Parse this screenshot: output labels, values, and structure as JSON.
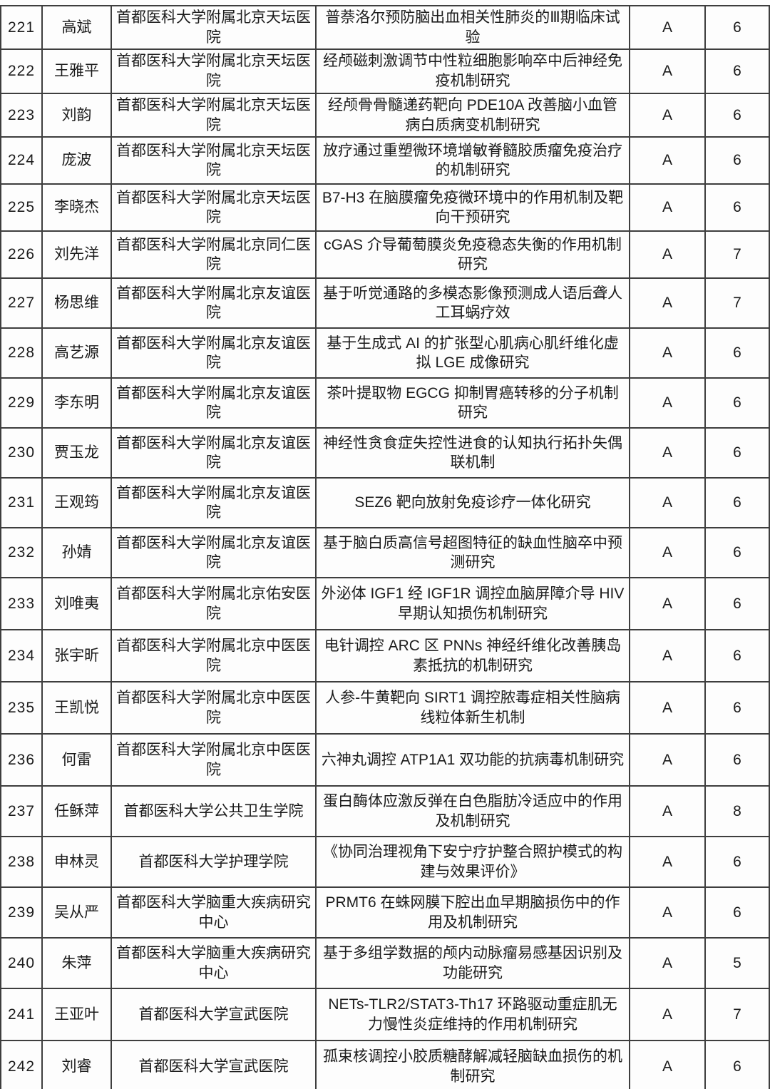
{
  "colors": {
    "page_background": "#fdfdfd",
    "border": "#3e3e3e",
    "text": "#1b1b1b"
  },
  "table": {
    "rows": [
      {
        "no": "221",
        "name": "高斌",
        "org": "首都医科大学附属北京天坛医院",
        "title": "普萘洛尔预防脑出血相关性肺炎的Ⅲ期临床试验",
        "grade": "A",
        "amount": "6"
      },
      {
        "no": "222",
        "name": "王雅平",
        "org": "首都医科大学附属北京天坛医院",
        "title": "经颅磁刺激调节中性粒细胞影响卒中后神经免疫机制研究",
        "grade": "A",
        "amount": "6"
      },
      {
        "no": "223",
        "name": "刘韵",
        "org": "首都医科大学附属北京天坛医院",
        "title": "经颅骨骨髓递药靶向 PDE10A 改善脑小血管病白质病变机制研究",
        "grade": "A",
        "amount": "6"
      },
      {
        "no": "224",
        "name": "庞波",
        "org": "首都医科大学附属北京天坛医院",
        "title": "放疗通过重塑微环境增敏脊髓胶质瘤免疫治疗的机制研究",
        "grade": "A",
        "amount": "6"
      },
      {
        "no": "225",
        "name": "李晓杰",
        "org": "首都医科大学附属北京天坛医院",
        "title": "B7-H3 在脑膜瘤免疫微环境中的作用机制及靶向干预研究",
        "grade": "A",
        "amount": "6"
      },
      {
        "no": "226",
        "name": "刘先洋",
        "org": "首都医科大学附属北京同仁医院",
        "title": "cGAS 介导葡萄膜炎免疫稳态失衡的作用机制研究",
        "grade": "A",
        "amount": "7"
      },
      {
        "no": "227",
        "name": "杨思维",
        "org": "首都医科大学附属北京友谊医院",
        "title": "基于听觉通路的多模态影像预测成人语后聋人工耳蜗疗效",
        "grade": "A",
        "amount": "7"
      },
      {
        "no": "228",
        "name": "高艺源",
        "org": "首都医科大学附属北京友谊医院",
        "title": "基于生成式 AI 的扩张型心肌病心肌纤维化虚拟 LGE 成像研究",
        "grade": "A",
        "amount": "6"
      },
      {
        "no": "229",
        "name": "李东明",
        "org": "首都医科大学附属北京友谊医院",
        "title": "茶叶提取物 EGCG 抑制胃癌转移的分子机制研究",
        "grade": "A",
        "amount": "6"
      },
      {
        "no": "230",
        "name": "贾玉龙",
        "org": "首都医科大学附属北京友谊医院",
        "title": "神经性贪食症失控性进食的认知执行拓扑失偶联机制",
        "grade": "A",
        "amount": "6"
      },
      {
        "no": "231",
        "name": "王观筠",
        "org": "首都医科大学附属北京友谊医院",
        "title": "SEZ6 靶向放射免疫诊疗一体化研究",
        "grade": "A",
        "amount": "6"
      },
      {
        "no": "232",
        "name": "孙婧",
        "org": "首都医科大学附属北京友谊医院",
        "title": "基于脑白质高信号超图特征的缺血性脑卒中预测研究",
        "grade": "A",
        "amount": "6"
      },
      {
        "no": "233",
        "name": "刘唯夷",
        "org": "首都医科大学附属北京佑安医院",
        "title": "外泌体 IGF1 经 IGF1R 调控血脑屏障介导 HIV 早期认知损伤机制研究",
        "grade": "A",
        "amount": "6"
      },
      {
        "no": "234",
        "name": "张宇昕",
        "org": "首都医科大学附属北京中医医院",
        "title": "电针调控 ARC 区 PNNs 神经纤维化改善胰岛素抵抗的机制研究",
        "grade": "A",
        "amount": "6"
      },
      {
        "no": "235",
        "name": "王凯悦",
        "org": "首都医科大学附属北京中医医院",
        "title": "人参-牛黄靶向 SIRT1 调控脓毒症相关性脑病线粒体新生机制",
        "grade": "A",
        "amount": "6"
      },
      {
        "no": "236",
        "name": "何雷",
        "org": "首都医科大学附属北京中医医院",
        "title": "六神丸调控 ATP1A1 双功能的抗病毒机制研究",
        "grade": "A",
        "amount": "6"
      },
      {
        "no": "237",
        "name": "任稣萍",
        "org": "首都医科大学公共卫生学院",
        "title": "蛋白酶体应激反弹在白色脂肪冷适应中的作用及机制研究",
        "grade": "A",
        "amount": "8"
      },
      {
        "no": "238",
        "name": "申林灵",
        "org": "首都医科大学护理学院",
        "title": "《协同治理视角下安宁疗护整合照护模式的构建与效果评价》",
        "grade": "A",
        "amount": "6"
      },
      {
        "no": "239",
        "name": "吴从严",
        "org": "首都医科大学脑重大疾病研究中心",
        "title": "PRMT6 在蛛网膜下腔出血早期脑损伤中的作用及机制研究",
        "grade": "A",
        "amount": "6"
      },
      {
        "no": "240",
        "name": "朱萍",
        "org": "首都医科大学脑重大疾病研究中心",
        "title": "基于多组学数据的颅内动脉瘤易感基因识别及功能研究",
        "grade": "A",
        "amount": "5"
      },
      {
        "no": "241",
        "name": "王亚叶",
        "org": "首都医科大学宣武医院",
        "title": "NETs-TLR2/STAT3-Th17 环路驱动重症肌无力慢性炎症维持的作用机制研究",
        "grade": "A",
        "amount": "7"
      },
      {
        "no": "242",
        "name": "刘睿",
        "org": "首都医科大学宣武医院",
        "title": "孤束核调控小胶质糖酵解减轻脑缺血损伤的机制研究",
        "grade": "A",
        "amount": "6"
      }
    ]
  }
}
